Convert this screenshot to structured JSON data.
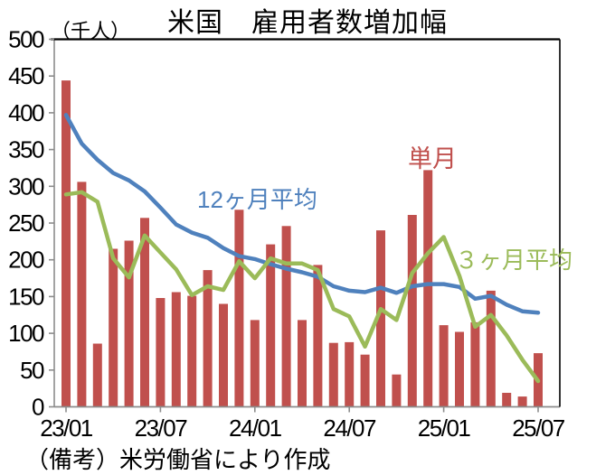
{
  "header": {
    "title": "米国　雇用者数増加幅",
    "unit_label": "（千人）"
  },
  "footer": {
    "note": "（備考）米労働省により作成"
  },
  "series_labels": {
    "monthly": "単月",
    "avg12": "12ヶ月平均",
    "avg3": "３ヶ月平均"
  },
  "colors": {
    "bar": "#C0504D",
    "line12": "#4F81BD",
    "line3": "#9BBB59",
    "axis": "#8C8C8C",
    "frame": "#000000",
    "text": "#000000"
  },
  "chart_data": {
    "type": "bar",
    "subtype": "combo bar + line",
    "title": "米国　雇用者数増加幅",
    "ylabel": "（千人）",
    "xlabel": "",
    "grid": false,
    "legend_position": "inline text annotations",
    "ylim": [
      0,
      500
    ],
    "y_ticks": [
      0,
      50,
      100,
      150,
      200,
      250,
      300,
      350,
      400,
      450,
      500
    ],
    "x_tick_labels": [
      "23/01",
      "23/07",
      "24/01",
      "24/07",
      "25/01",
      "25/07"
    ],
    "x": [
      "23/01",
      "23/02",
      "23/03",
      "23/04",
      "23/05",
      "23/06",
      "23/07",
      "23/08",
      "23/09",
      "23/10",
      "23/11",
      "23/12",
      "24/01",
      "24/02",
      "24/03",
      "24/04",
      "24/05",
      "24/06",
      "24/07",
      "24/08",
      "24/09",
      "24/10",
      "24/11",
      "24/12",
      "25/01",
      "25/02",
      "25/03",
      "25/04",
      "25/05",
      "25/06",
      "25/07"
    ],
    "series": [
      {
        "name": "単月",
        "type": "bar",
        "color": "#C0504D",
        "values": [
          444,
          306,
          86,
          215,
          226,
          257,
          148,
          156,
          151,
          186,
          140,
          268,
          118,
          221,
          246,
          118,
          193,
          87,
          88,
          71,
          240,
          44,
          261,
          322,
          111,
          102,
          115,
          158,
          19,
          14,
          73
        ]
      },
      {
        "name": "12ヶ月平均",
        "type": "line",
        "color": "#4F81BD",
        "values": [
          397,
          358,
          336,
          318,
          308,
          293,
          271,
          248,
          237,
          230,
          216,
          205,
          201,
          194,
          188,
          183,
          177,
          164,
          158,
          156,
          162,
          155,
          164,
          167,
          167,
          163,
          147,
          151,
          139,
          130,
          128
        ]
      },
      {
        "name": "３ヶ月平均",
        "type": "line",
        "color": "#9BBB59",
        "values": [
          289,
          292,
          279,
          202,
          176,
          233,
          210,
          187,
          152,
          164,
          159,
          198,
          175,
          202,
          195,
          195,
          186,
          133,
          123,
          82,
          133,
          118,
          182,
          209,
          231,
          178,
          109,
          125,
          97,
          64,
          35
        ]
      }
    ]
  }
}
